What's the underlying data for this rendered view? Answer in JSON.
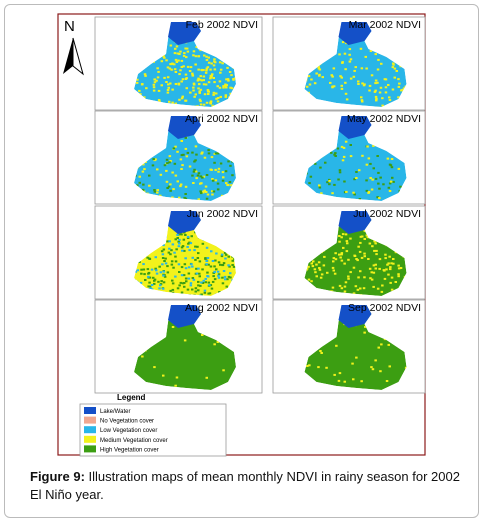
{
  "figure": {
    "north": "N",
    "panels": [
      {
        "title": "Feb 2002 NDVI"
      },
      {
        "title": "Mar 2002 NDVI"
      },
      {
        "title": "Apri 2002 NDVI"
      },
      {
        "title": "May 2002 NDVI"
      },
      {
        "title": "Jun 2002 NDVI"
      },
      {
        "title": "Jul 2002 NDVI"
      },
      {
        "title": "Aug 2002 NDVI"
      },
      {
        "title": "Sep 2002 NDVI"
      }
    ],
    "legend": {
      "title": "Legend",
      "items": [
        {
          "label": "Lake/Water",
          "color": "#1450c8"
        },
        {
          "label": "No Vegetation cover",
          "color": "#f0a890"
        },
        {
          "label": "Low Vegetation cover",
          "color": "#29b6e8"
        },
        {
          "label": "Medium Vegetation cover",
          "color": "#f2f21c"
        },
        {
          "label": "High Vegetation cover",
          "color": "#3c9e12"
        }
      ]
    }
  },
  "caption": {
    "label": "Figure 9:",
    "text": "Illustration maps of mean monthly NDVI in rainy season for 2002 El Niño year."
  }
}
